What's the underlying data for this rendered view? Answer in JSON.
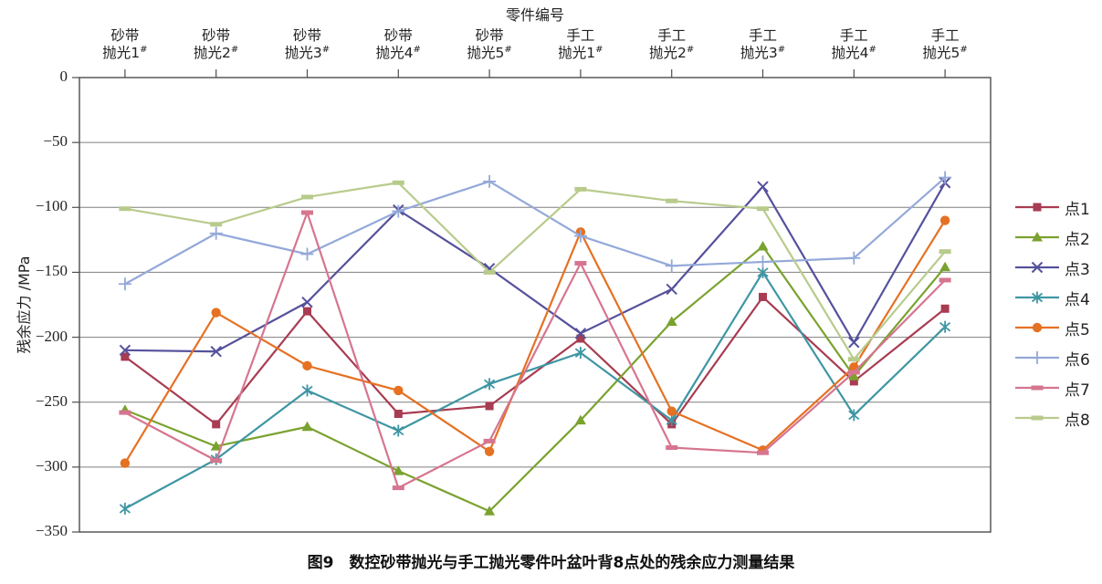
{
  "chart": {
    "top_axis_title": "零件编号",
    "y_axis_title": "残余应力 /MPa",
    "caption": "图9　数控砂带抛光与手工抛光零件叶盆叶背8点处的残余应力测量结果",
    "y_tick_labels": [
      "0",
      "−50",
      "−100",
      "−150",
      "−200",
      "−250",
      "−300",
      "−350"
    ],
    "colors": {
      "gridline": "#7f7f7f",
      "plot_border": "#4d4d4d",
      "background": "#ffffff"
    }
  },
  "chart_data": {
    "type": "line",
    "title": "零件编号",
    "xlabel": "零件编号",
    "ylabel": "残余应力 /MPa",
    "ylim": [
      -350,
      0
    ],
    "y_ticks": [
      0,
      -50,
      -100,
      -150,
      -200,
      -250,
      -300,
      -350
    ],
    "grid": "horizontal",
    "legend_position": "right",
    "categories": [
      "砂带抛光1#",
      "砂带抛光2#",
      "砂带抛光3#",
      "砂带抛光4#",
      "砂带抛光5#",
      "手工抛光1#",
      "手工抛光2#",
      "手工抛光3#",
      "手工抛光4#",
      "手工抛光5#"
    ],
    "category_labels": [
      {
        "top": "砂带",
        "bottom": "抛光1",
        "sup": "#"
      },
      {
        "top": "砂带",
        "bottom": "抛光2",
        "sup": "#"
      },
      {
        "top": "砂带",
        "bottom": "抛光3",
        "sup": "#"
      },
      {
        "top": "砂带",
        "bottom": "抛光4",
        "sup": "#"
      },
      {
        "top": "砂带",
        "bottom": "抛光5",
        "sup": "#"
      },
      {
        "top": "手工",
        "bottom": "抛光1",
        "sup": "#"
      },
      {
        "top": "手工",
        "bottom": "抛光2",
        "sup": "#"
      },
      {
        "top": "手工",
        "bottom": "抛光3",
        "sup": "#"
      },
      {
        "top": "手工",
        "bottom": "抛光4",
        "sup": "#"
      },
      {
        "top": "手工",
        "bottom": "抛光5",
        "sup": "#"
      }
    ],
    "series": [
      {
        "name": "点1",
        "color": "#A83C52",
        "marker": "square",
        "values": [
          -215,
          -267,
          -180,
          -259,
          -253,
          -201,
          -267,
          -169,
          -234,
          -178
        ]
      },
      {
        "name": "点2",
        "color": "#7AA22F",
        "marker": "triangle",
        "values": [
          -256,
          -284,
          -269,
          -303,
          -334,
          -264,
          -188,
          -130,
          -230,
          -146
        ]
      },
      {
        "name": "点3",
        "color": "#55519C",
        "marker": "x",
        "values": [
          -210,
          -211,
          -173,
          -102,
          -147,
          -197,
          -163,
          -84,
          -204,
          -81
        ]
      },
      {
        "name": "点4",
        "color": "#3E96A3",
        "marker": "asterisk",
        "values": [
          -332,
          -294,
          -241,
          -272,
          -236,
          -212,
          -264,
          -150,
          -260,
          -192
        ]
      },
      {
        "name": "点5",
        "color": "#E57123",
        "marker": "circle",
        "values": [
          -297,
          -181,
          -222,
          -241,
          -288,
          -119,
          -257,
          -287,
          -223,
          -110
        ]
      },
      {
        "name": "点6",
        "color": "#94A9D9",
        "marker": "plus",
        "values": [
          -159,
          -120,
          -136,
          -103,
          -80,
          -122,
          -145,
          -142,
          -139,
          -77
        ]
      },
      {
        "name": "点7",
        "color": "#D6758F",
        "marker": "dash",
        "values": [
          -258,
          -295,
          -104,
          -316,
          -280,
          -143,
          -285,
          -289,
          -227,
          -156
        ]
      },
      {
        "name": "点8",
        "color": "#B8CB8C",
        "marker": "dash",
        "values": [
          -101,
          -113,
          -92,
          -81,
          -150,
          -86,
          -95,
          -101,
          -217,
          -134
        ]
      }
    ]
  }
}
